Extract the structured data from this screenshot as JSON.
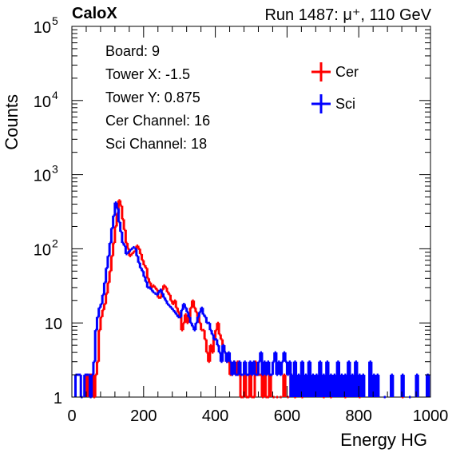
{
  "header": {
    "experiment": "CaloX",
    "run_label": "Run 1487:",
    "beam": "μ⁺, 110 GeV"
  },
  "info_box": [
    "Board: 9",
    "Tower X: -1.5",
    "Tower Y: 0.875",
    "Cer Channel: 16",
    "Sci Channel: 18"
  ],
  "colors": {
    "cer": "#ff0000",
    "sci": "#0000ff",
    "axis": "#000000"
  },
  "chart_data": {
    "type": "line",
    "xlabel": "Energy HG",
    "ylabel": "Counts",
    "xlim": [
      0,
      1000
    ],
    "ylim": [
      1,
      100000
    ],
    "y_scale": "log",
    "grid": false,
    "legend_position": "top-right",
    "x_ticks": [
      0,
      200,
      400,
      600,
      800,
      1000
    ],
    "y_ticks": [
      {
        "value": 1,
        "base": "1",
        "exp": ""
      },
      {
        "value": 10,
        "base": "10",
        "exp": ""
      },
      {
        "value": 100,
        "base": "10",
        "exp": "2"
      },
      {
        "value": 1000,
        "base": "10",
        "exp": "3"
      },
      {
        "value": 10000,
        "base": "10",
        "exp": "4"
      },
      {
        "value": 100000,
        "base": "10",
        "exp": "5"
      }
    ],
    "bin_width": 5,
    "series": [
      {
        "name": "Cer",
        "color": "#ff0000",
        "x": [
          40,
          50,
          55,
          60,
          65,
          70,
          75,
          80,
          85,
          90,
          95,
          100,
          105,
          110,
          115,
          120,
          125,
          130,
          135,
          140,
          145,
          150,
          155,
          160,
          165,
          170,
          175,
          180,
          185,
          190,
          195,
          200,
          205,
          210,
          215,
          220,
          225,
          230,
          235,
          240,
          245,
          250,
          255,
          260,
          265,
          270,
          275,
          280,
          285,
          290,
          295,
          300,
          305,
          310,
          315,
          320,
          325,
          330,
          335,
          340,
          345,
          350,
          355,
          360,
          365,
          370,
          375,
          380,
          385,
          390,
          395,
          400,
          405,
          410,
          415,
          420,
          425,
          430,
          435,
          440,
          445,
          450,
          455,
          460,
          465,
          470,
          475,
          480,
          485,
          490,
          495,
          500,
          505,
          510,
          515,
          520,
          525,
          530,
          535,
          540,
          545,
          550,
          560,
          570,
          580,
          590,
          600,
          610,
          620,
          640,
          660,
          700,
          720,
          760,
          800,
          920
        ],
        "values": [
          2,
          2,
          2,
          1,
          2,
          3,
          8,
          12,
          15,
          18,
          25,
          35,
          50,
          80,
          120,
          200,
          300,
          450,
          380,
          250,
          180,
          120,
          100,
          80,
          85,
          90,
          95,
          110,
          100,
          85,
          70,
          60,
          55,
          40,
          35,
          30,
          32,
          30,
          28,
          22,
          22,
          28,
          32,
          30,
          26,
          24,
          20,
          18,
          20,
          16,
          14,
          12,
          8,
          10,
          13,
          10,
          12,
          16,
          20,
          16,
          14,
          12,
          10,
          8,
          8,
          6,
          4,
          3,
          5,
          4,
          6,
          8,
          10,
          7,
          6,
          5,
          4,
          3,
          3,
          2,
          2,
          3,
          2,
          3,
          2,
          1,
          1,
          2,
          1,
          1,
          2,
          1,
          1,
          3,
          2,
          2,
          2,
          1,
          2,
          1,
          1,
          2,
          1,
          1,
          1,
          2,
          1,
          2,
          1,
          1,
          2,
          1,
          1,
          1,
          1,
          1
        ]
      },
      {
        "name": "Sci",
        "color": "#0000ff",
        "x": [
          10,
          15,
          20,
          25,
          35,
          40,
          45,
          50,
          55,
          60,
          65,
          70,
          75,
          80,
          85,
          90,
          95,
          100,
          105,
          110,
          115,
          120,
          125,
          130,
          135,
          140,
          145,
          150,
          155,
          160,
          165,
          170,
          175,
          180,
          185,
          190,
          195,
          200,
          205,
          210,
          215,
          220,
          225,
          230,
          235,
          240,
          245,
          250,
          255,
          260,
          265,
          270,
          275,
          280,
          285,
          290,
          295,
          300,
          305,
          310,
          315,
          320,
          325,
          330,
          335,
          340,
          345,
          350,
          355,
          360,
          365,
          370,
          375,
          380,
          385,
          390,
          395,
          400,
          405,
          410,
          415,
          420,
          425,
          430,
          435,
          440,
          445,
          450,
          455,
          460,
          465,
          470,
          475,
          480,
          485,
          490,
          495,
          500,
          505,
          510,
          515,
          520,
          525,
          530,
          535,
          540,
          545,
          550,
          555,
          560,
          565,
          570,
          575,
          580,
          585,
          590,
          595,
          600,
          605,
          610,
          620,
          630,
          640,
          650,
          660,
          670,
          680,
          690,
          700,
          710,
          720,
          730,
          740,
          750,
          760,
          770,
          780,
          790,
          800,
          810,
          830,
          840,
          850,
          870,
          890,
          920,
          940,
          960,
          990
        ],
        "values": [
          2,
          2,
          2,
          1,
          2,
          2,
          2,
          1,
          2,
          3,
          8,
          12,
          16,
          18,
          24,
          35,
          55,
          80,
          120,
          190,
          280,
          420,
          350,
          230,
          170,
          120,
          110,
          85,
          90,
          95,
          100,
          105,
          100,
          80,
          65,
          55,
          50,
          42,
          36,
          30,
          30,
          28,
          26,
          25,
          24,
          26,
          28,
          25,
          22,
          20,
          18,
          17,
          16,
          15,
          14,
          13,
          12,
          12,
          15,
          18,
          16,
          14,
          12,
          10,
          9,
          8,
          10,
          12,
          14,
          16,
          13,
          12,
          10,
          10,
          8,
          7,
          6,
          6,
          5,
          4,
          3,
          5,
          4,
          3,
          4,
          3,
          2,
          3,
          2,
          2,
          3,
          2,
          2,
          3,
          2,
          2,
          3,
          2,
          3,
          2,
          2,
          3,
          4,
          2,
          3,
          2,
          3,
          2,
          2,
          3,
          4,
          2,
          3,
          2,
          3,
          4,
          3,
          2,
          3,
          2,
          3,
          2,
          3,
          2,
          3,
          2,
          2,
          3,
          2,
          3,
          2,
          2,
          3,
          2,
          2,
          3,
          2,
          3,
          2,
          2,
          3,
          2,
          2,
          1,
          2,
          2,
          1,
          2,
          2
        ]
      }
    ]
  }
}
